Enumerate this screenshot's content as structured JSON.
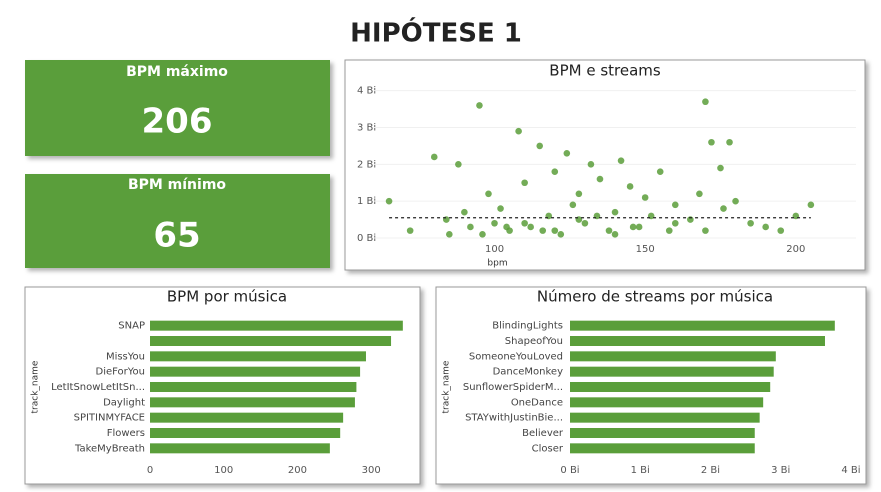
{
  "header": {
    "title": "HIPÓTESE 1"
  },
  "cards": [
    {
      "label": "BPM máximo",
      "value": 206
    },
    {
      "label": "BPM mínimo",
      "value": 65
    }
  ],
  "chart_data": [
    {
      "type": "scatter",
      "title": "BPM e streams",
      "x_label": "bpm",
      "color": "#5a9e3a",
      "grid": true,
      "x": [
        65,
        72,
        80,
        85,
        88,
        92,
        95,
        98,
        100,
        102,
        105,
        108,
        110,
        112,
        115,
        118,
        120,
        122,
        124,
        126,
        128,
        130,
        132,
        135,
        138,
        140,
        142,
        145,
        148,
        150,
        152,
        155,
        158,
        160,
        165,
        170,
        172,
        175,
        178,
        180,
        185,
        190,
        195,
        200,
        205,
        96,
        104,
        116,
        128,
        140,
        170,
        168,
        176,
        84,
        90,
        110,
        120,
        134,
        146,
        160
      ],
      "values": [
        1.0,
        0.2,
        2.2,
        0.1,
        2.0,
        0.3,
        3.6,
        1.2,
        0.4,
        0.8,
        0.2,
        2.9,
        1.5,
        0.3,
        2.5,
        0.6,
        1.8,
        0.1,
        2.3,
        0.9,
        1.2,
        0.4,
        2.0,
        1.6,
        0.2,
        0.7,
        2.1,
        1.4,
        0.3,
        1.1,
        0.6,
        1.8,
        0.2,
        0.9,
        0.5,
        3.7,
        2.6,
        1.9,
        2.6,
        1.0,
        0.4,
        0.3,
        0.2,
        0.6,
        0.9,
        0.1,
        0.3,
        0.2,
        0.5,
        0.1,
        0.2,
        1.2,
        0.8,
        0.5,
        0.7,
        0.4,
        0.2,
        0.6,
        0.3,
        0.4
      ],
      "reference_line": 0.55,
      "xlim": [
        60,
        215
      ],
      "xticks": [
        100,
        150,
        200
      ],
      "ylim": [
        0,
        4.1
      ],
      "yticks": [
        {
          "value": 0,
          "label": "0 Bi"
        },
        {
          "value": 1,
          "label": "1 Bi"
        },
        {
          "value": 2,
          "label": "2 Bi"
        },
        {
          "value": 3,
          "label": "3 Bi"
        },
        {
          "value": 4,
          "label": "4 Bi"
        }
      ]
    },
    {
      "type": "hbar",
      "title": "BPM por música",
      "y_label": "track_name",
      "color": "#5a9e3a",
      "grid": false,
      "categories": [
        "SNAP",
        null,
        "MissYou",
        "DieForYou",
        "LetItSnowLetItSn...",
        "Daylight",
        "SPITINMYFACE",
        "Flowers",
        "TakeMyBreath"
      ],
      "values": [
        343,
        327,
        293,
        285,
        280,
        278,
        262,
        258,
        244
      ],
      "xlim": [
        0,
        350
      ],
      "xticks": [
        0,
        100,
        200,
        300
      ]
    },
    {
      "type": "hbar",
      "title": "Número de streams por música",
      "y_label": "track_name",
      "color": "#5a9e3a",
      "grid": false,
      "categories": [
        "BlindingLights",
        "ShapeofYou",
        "SomeoneYouLoved",
        "DanceMonkey",
        "SunflowerSpiderM...",
        "OneDance",
        "STAYwithJustinBie...",
        "Believer",
        "Closer"
      ],
      "values": [
        3.77,
        3.63,
        2.93,
        2.9,
        2.85,
        2.75,
        2.7,
        2.63,
        2.63
      ],
      "xlim": [
        0,
        4.1
      ],
      "xticks": [
        {
          "value": 0,
          "label": "0 Bi"
        },
        {
          "value": 1,
          "label": "1 Bi"
        },
        {
          "value": 2,
          "label": "2 Bi"
        },
        {
          "value": 3,
          "label": "3 Bi"
        },
        {
          "value": 4,
          "label": "4 Bi"
        }
      ]
    }
  ]
}
